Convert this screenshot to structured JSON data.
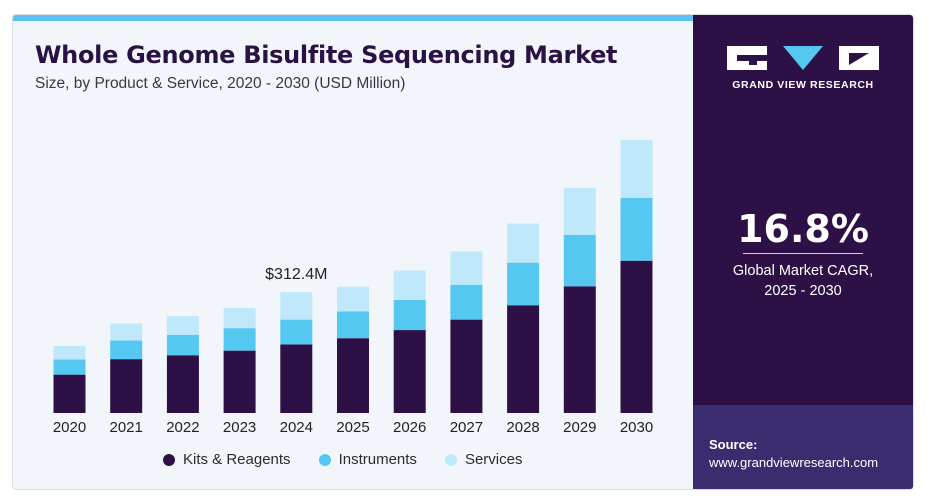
{
  "header": {
    "title": "Whole Genome Bisulfite Sequencing Market",
    "subtitle": "Size, by Product & Service, 2020 - 2030 (USD Million)"
  },
  "brand": {
    "name": "GRAND VIEW RESEARCH",
    "cagr_value": "16.8%",
    "cagr_label_line1": "Global Market CAGR,",
    "cagr_label_line2": "2025 - 2030",
    "source_label": "Source:",
    "source_url": "www.grandviewresearch.com"
  },
  "colors": {
    "kits": "#2d1146",
    "instruments": "#55c8f2",
    "services": "#bfe8fa",
    "sidebar": "#2d1146",
    "accent": "#5ac4ee"
  },
  "chart_data": {
    "type": "bar",
    "stacked": true,
    "title": "Whole Genome Bisulfite Sequencing Market",
    "subtitle": "Size, by Product & Service, 2020 - 2030 (USD Million)",
    "categories": [
      "2020",
      "2021",
      "2022",
      "2023",
      "2024",
      "2025",
      "2026",
      "2027",
      "2028",
      "2029",
      "2030"
    ],
    "series": [
      {
        "name": "Kits & Reagents",
        "values": [
          99,
          139,
          149,
          161,
          177,
          193,
          214,
          241,
          278,
          327,
          393
        ]
      },
      {
        "name": "Instruments",
        "values": [
          39,
          48,
          53,
          58,
          64,
          69,
          78,
          90,
          110,
          133,
          162
        ]
      },
      {
        "name": "Services",
        "values": [
          35,
          44,
          48,
          52,
          71,
          64,
          76,
          86,
          101,
          121,
          150
        ]
      }
    ],
    "annotations": [
      {
        "category": "2024",
        "text": "$312.4M"
      }
    ],
    "ylim": [
      0,
      720
    ],
    "grid": false,
    "legend_position": "bottom"
  }
}
